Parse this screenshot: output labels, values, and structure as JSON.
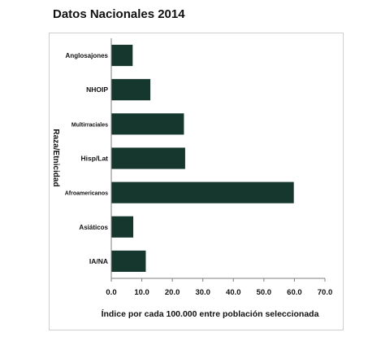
{
  "title": "Datos Nacionales 2014",
  "chart_data": {
    "type": "bar",
    "orientation": "horizontal",
    "title": "",
    "categories": [
      "Anglosajones",
      "NHOIP",
      "Multirraciales",
      "Hisp/Lat",
      "Afroamericanos",
      "Asiáticos",
      "IA/NA"
    ],
    "values": [
      7.0,
      12.8,
      23.8,
      24.2,
      59.8,
      7.2,
      11.3
    ],
    "xlabel": "Índice por cada 100.000 entre población seleccionada",
    "ylabel": "Raza/Etnicidad",
    "xlim": [
      0,
      70
    ],
    "xticks": [
      "0.0",
      "10.0",
      "20.0",
      "30.0",
      "40.0",
      "50.0",
      "60.0",
      "70.0"
    ],
    "grid": false,
    "legend": "none",
    "bar_color": "#16372d"
  }
}
